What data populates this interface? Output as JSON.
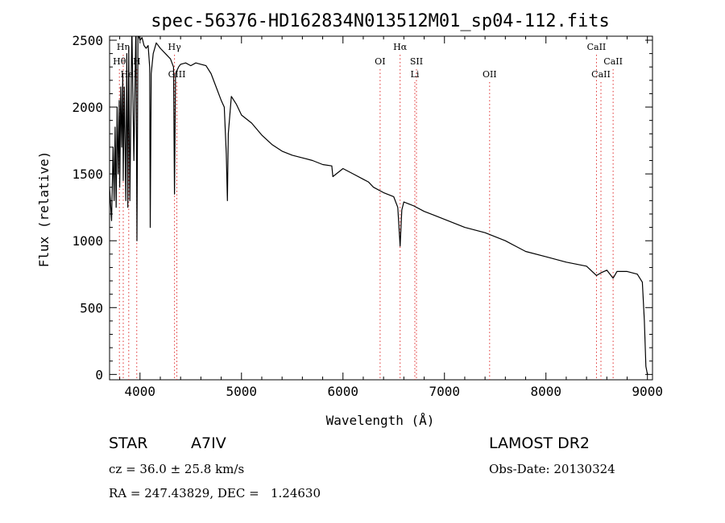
{
  "chart_data": {
    "type": "line",
    "title": "spec-56376-HD162834N013512M01_sp04-112.fits",
    "xlabel": "Wavelength (Å)",
    "ylabel": "Flux (relative)",
    "xlim": [
      3700,
      9050
    ],
    "ylim": [
      -40,
      2530
    ],
    "xticks": [
      4000,
      5000,
      6000,
      7000,
      8000,
      9000
    ],
    "yticks": [
      0,
      500,
      1000,
      1500,
      2000,
      2500
    ],
    "grid": false,
    "series": [
      {
        "color": "#000000",
        "x": [
          3700,
          3720,
          3735,
          3745,
          3755,
          3765,
          3775,
          3785,
          3795,
          3800,
          3810,
          3820,
          3830,
          3835,
          3845,
          3860,
          3870,
          3880,
          3889,
          3900,
          3920,
          3940,
          3960,
          3970,
          3980,
          4000,
          4020,
          4040,
          4060,
          4080,
          4095,
          4101,
          4110,
          4130,
          4160,
          4200,
          4250,
          4300,
          4330,
          4340,
          4350,
          4380,
          4400,
          4450,
          4500,
          4550,
          4600,
          4650,
          4700,
          4750,
          4800,
          4830,
          4850,
          4861,
          4870,
          4900,
          4950,
          5000,
          5100,
          5200,
          5300,
          5400,
          5500,
          5600,
          5700,
          5800,
          5890,
          5900,
          6000,
          6100,
          6200,
          6250,
          6300,
          6400,
          6500,
          6540,
          6563,
          6580,
          6600,
          6700,
          6800,
          6900,
          7000,
          7200,
          7400,
          7600,
          7700,
          7800,
          8000,
          8200,
          8400,
          8498,
          8542,
          8600,
          8662,
          8700,
          8800,
          8900,
          8950,
          8970,
          8985,
          9000
        ],
        "y": [
          1400,
          1150,
          1700,
          1300,
          1850,
          1250,
          2000,
          1500,
          2050,
          1400,
          2150,
          1700,
          2250,
          1450,
          2150,
          1300,
          2400,
          1250,
          2450,
          1300,
          2600,
          1600,
          2650,
          1000,
          2550,
          2500,
          2520,
          2460,
          2440,
          2460,
          2300,
          1100,
          2250,
          2400,
          2480,
          2440,
          2400,
          2360,
          2300,
          1350,
          2250,
          2300,
          2320,
          2330,
          2310,
          2330,
          2320,
          2310,
          2250,
          2150,
          2050,
          2000,
          1650,
          1300,
          1800,
          2080,
          2020,
          1940,
          1880,
          1790,
          1720,
          1670,
          1640,
          1620,
          1600,
          1570,
          1560,
          1480,
          1540,
          1500,
          1460,
          1440,
          1400,
          1360,
          1330,
          1250,
          960,
          1230,
          1290,
          1260,
          1220,
          1190,
          1160,
          1100,
          1060,
          1000,
          960,
          920,
          880,
          840,
          810,
          740,
          760,
          780,
          720,
          770,
          770,
          750,
          690,
          400,
          60,
          0
        ]
      }
    ],
    "line_markers": [
      {
        "label": "Hη",
        "x": 3835,
        "row": 0
      },
      {
        "label": "Hθ",
        "x": 3797,
        "row": 1
      },
      {
        "label": "H",
        "x": 3968,
        "row": 1
      },
      {
        "label": "HeI",
        "x": 3889,
        "row": 2
      },
      {
        "label": "Hγ",
        "x": 4340,
        "row": 0
      },
      {
        "label": "GIII",
        "x": 4363,
        "row": 2
      },
      {
        "label": "OI",
        "x": 6366,
        "row": 1
      },
      {
        "label": "Hα",
        "x": 6563,
        "row": 0
      },
      {
        "label": "SII",
        "x": 6724,
        "row": 1
      },
      {
        "label": "Li",
        "x": 6708,
        "row": 2
      },
      {
        "label": "OII",
        "x": 7445,
        "row": 2
      },
      {
        "label": "CaII",
        "x": 8498,
        "row": 0
      },
      {
        "label": "CaII",
        "x": 8662,
        "row": 1
      },
      {
        "label": "CaII",
        "x": 8542,
        "row": 2
      }
    ]
  },
  "info": {
    "object_class": "STAR",
    "subclass": "A7IV",
    "survey": "LAMOST DR2",
    "redshift": "cz = 36.0 ± 25.8 km/s",
    "obs_date": "Obs-Date: 20130324",
    "coords": "RA = 247.43829, DEC =   1.24630"
  }
}
